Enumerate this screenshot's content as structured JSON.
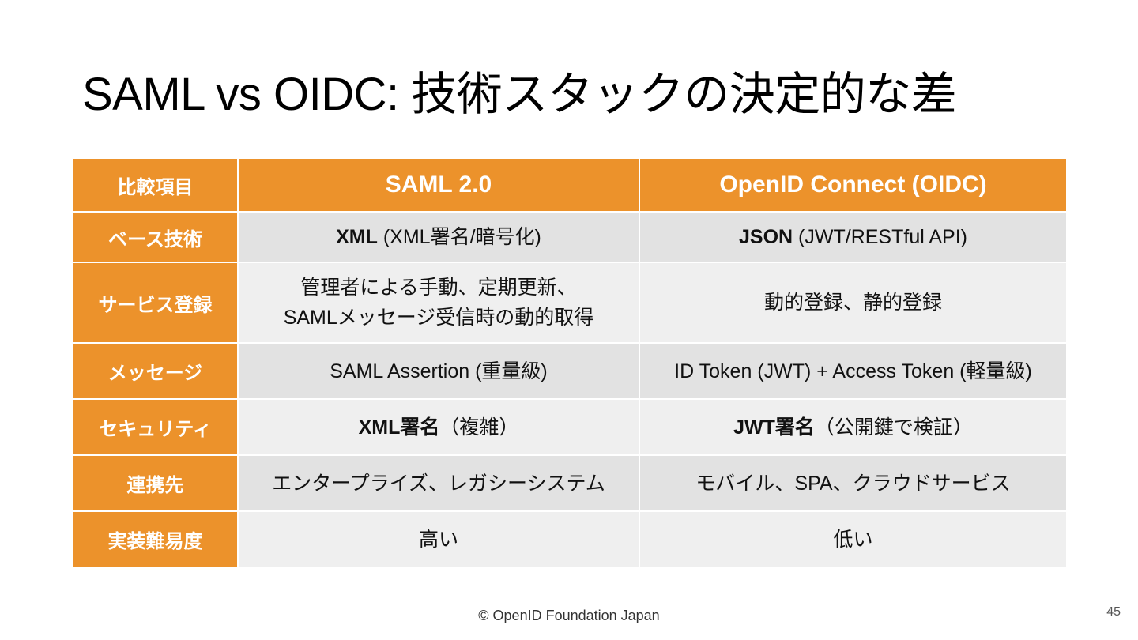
{
  "slide": {
    "title": "SAML vs OIDC: 技術スタックの決定的な差",
    "footer": "© OpenID Foundation Japan",
    "page_number": "45"
  },
  "table": {
    "headers": [
      "比較項目",
      "SAML 2.0",
      "OpenID Connect (OIDC)"
    ],
    "rows": [
      {
        "label": "ベース技術",
        "saml_bold": "XML",
        "saml_rest": " (XML署名/暗号化)",
        "oidc_bold": "JSON",
        "oidc_rest": " (JWT/RESTful API)"
      },
      {
        "label": "サービス登録",
        "saml_line1": "管理者による手動、定期更新、",
        "saml_line2": "SAMLメッセージ受信時の動的取得",
        "oidc": "動的登録、静的登録"
      },
      {
        "label": "メッセージ",
        "saml": "SAML Assertion (重量級)",
        "oidc": "ID Token (JWT) + Access Token (軽量級)"
      },
      {
        "label": "セキュリティ",
        "saml_bold": "XML署名",
        "saml_rest": "（複雑）",
        "oidc_bold": "JWT署名",
        "oidc_rest": "（公開鍵で検証）"
      },
      {
        "label": "連携先",
        "saml": "エンタープライズ、レガシーシステム",
        "oidc": "モバイル、SPA、クラウドサービス"
      },
      {
        "label": "実装難易度",
        "saml": "高い",
        "oidc": "低い"
      }
    ]
  },
  "colors": {
    "accent": "#ec922b",
    "row_dark": "#e2e2e2",
    "row_light": "#efefef"
  }
}
